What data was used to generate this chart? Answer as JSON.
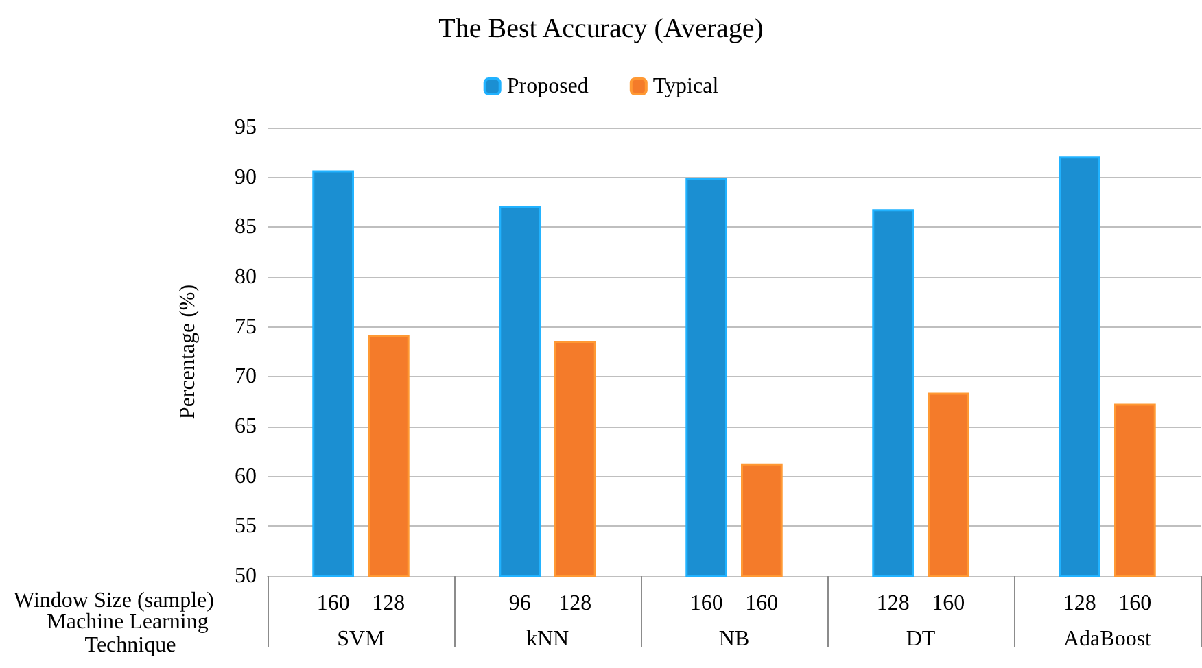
{
  "chart_data": {
    "type": "bar",
    "title": "The Best Accuracy (Average)",
    "ylabel": "Percentage (%)",
    "xlabel": "Machine Learning Technique",
    "categories": [
      "SVM",
      "kNN",
      "NB",
      "DT",
      "AdaBoost"
    ],
    "series": [
      {
        "name": "Proposed",
        "color": "#1b8fd2",
        "values": [
          90.7,
          87.1,
          89.9,
          86.8,
          92.1
        ]
      },
      {
        "name": "Typical",
        "color": "#f47b2a",
        "values": [
          74.2,
          73.6,
          61.3,
          68.4,
          67.3
        ]
      }
    ],
    "ylim": [
      50,
      95
    ],
    "yticks": [
      50,
      55,
      60,
      65,
      70,
      75,
      80,
      85,
      90,
      95
    ],
    "grid": "y",
    "legend": "top",
    "annotations": [
      "Window Size (sample)",
      "160",
      "128",
      "96",
      "128",
      "160",
      "160",
      "128",
      "160",
      "128",
      "160"
    ]
  }
}
